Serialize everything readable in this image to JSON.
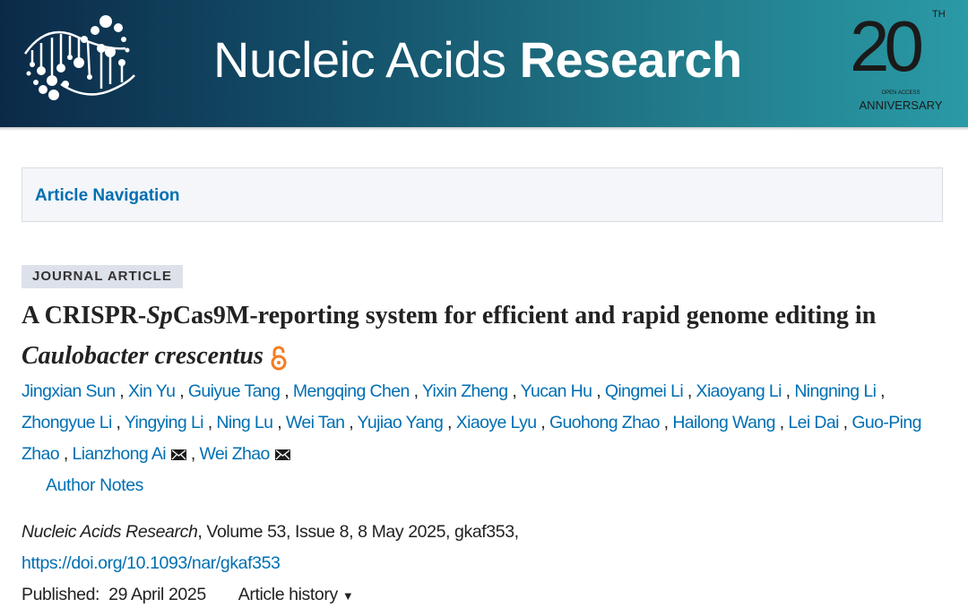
{
  "header": {
    "journal_name_light": "Nucleic Acids",
    "journal_name_bold": "Research",
    "anniversary": {
      "number": "20",
      "suffix": "TH",
      "line1": "OPEN ACCESS",
      "line2": "ANNIVERSARY"
    }
  },
  "navigation": {
    "label": "Article Navigation"
  },
  "article": {
    "type_badge": "JOURNAL ARTICLE",
    "title_part1": "A CRISPR-",
    "title_italic1": "Sp",
    "title_part2": "Cas9M-reporting system for efficient and rapid genome editing in ",
    "title_italic2": "Caulobacter crescentus",
    "open_access_icon": "open-lock-icon",
    "authors": [
      {
        "name": "Jingxian Sun"
      },
      {
        "name": "Xin Yu"
      },
      {
        "name": "Guiyue Tang"
      },
      {
        "name": "Mengqing Chen"
      },
      {
        "name": "Yixin Zheng"
      },
      {
        "name": "Yucan Hu"
      },
      {
        "name": "Qingmei Li"
      },
      {
        "name": "Xiaoyang Li"
      },
      {
        "name": "Ningning Li"
      },
      {
        "name": "Zhongyue Li"
      },
      {
        "name": "Yingying Li"
      },
      {
        "name": "Ning Lu"
      },
      {
        "name": "Wei Tan"
      },
      {
        "name": "Yujiao Yang"
      },
      {
        "name": "Xiaoye Lyu"
      },
      {
        "name": "Guohong Zhao"
      },
      {
        "name": "Hailong Wang"
      },
      {
        "name": "Lei Dai"
      },
      {
        "name": "Guo-Ping Zhao"
      },
      {
        "name": "Lianzhong Ai",
        "corresponding": true
      },
      {
        "name": "Wei Zhao",
        "corresponding": true
      }
    ],
    "author_notes": "Author Notes",
    "citation": {
      "journal": "Nucleic Acids Research",
      "rest": ", Volume 53, Issue 8, 8 May 2025, gkaf353,"
    },
    "doi": "https://doi.org/10.1093/nar/gkaf353",
    "published_label": "Published:",
    "published_date": "29 April 2025",
    "history_label": "Article history",
    "history_icon": "caret-down-icon"
  },
  "colors": {
    "link": "#006fb3",
    "header_start": "#0b2a48",
    "header_end": "#2a9aa6",
    "open_access": "#f47c20"
  }
}
